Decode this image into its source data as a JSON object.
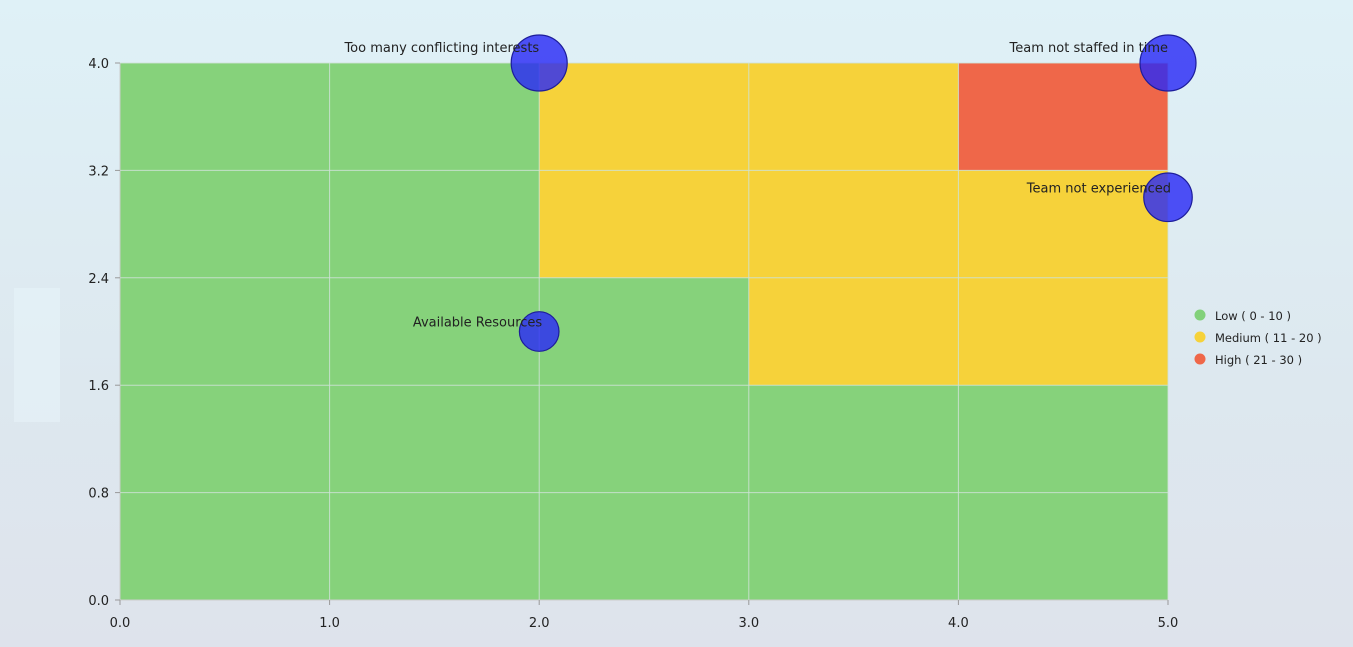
{
  "chart_data": {
    "type": "bubble-heatmap",
    "title": "",
    "xlabel": "",
    "ylabel": "",
    "xlim": [
      0,
      5
    ],
    "ylim": [
      0,
      4
    ],
    "x_ticks": [
      "0.0",
      "1.0",
      "2.0",
      "3.0",
      "4.0",
      "5.0"
    ],
    "y_ticks": [
      "0.0",
      "0.8",
      "1.6",
      "2.4",
      "3.2",
      "4.0"
    ],
    "grid": true,
    "zones": [
      {
        "category": "low",
        "x0": 0,
        "x1": 5,
        "y0": 0,
        "y1": 4
      },
      {
        "category": "medium",
        "x0": 2,
        "x1": 5,
        "y0": 2.4,
        "y1": 4
      },
      {
        "category": "medium",
        "x0": 3,
        "x1": 5,
        "y0": 1.6,
        "y1": 2.4
      },
      {
        "category": "high",
        "x0": 4,
        "x1": 5,
        "y0": 3.2,
        "y1": 4
      }
    ],
    "bubbles": [
      {
        "name": "Too many conflicting interests",
        "x": 2,
        "y": 4,
        "size": 8,
        "label_side": "top-left"
      },
      {
        "name": "Team not staffed in time",
        "x": 5,
        "y": 4,
        "size": 8,
        "label_side": "top-left"
      },
      {
        "name": "Team not experienced",
        "x": 5,
        "y": 3,
        "size": 6,
        "label_side": "left"
      },
      {
        "name": "Available Resources",
        "x": 2,
        "y": 2,
        "size": 4,
        "label_side": "left"
      }
    ],
    "legend": {
      "placement": "right",
      "items": [
        {
          "key": "low",
          "label": "Low ( 0 - 10 )",
          "color": "#82d17a"
        },
        {
          "key": "medium",
          "label": "Medium ( 11 - 20 )",
          "color": "#f6d23a"
        },
        {
          "key": "high",
          "label": "High ( 21 - 30 )",
          "color": "#ef6749"
        }
      ]
    },
    "colors": {
      "low": "#86d27b",
      "medium": "#f6d23a",
      "high": "#ef6749",
      "bubble_fill": "#2b2bf5",
      "bubble_stroke": "#1d1d9a",
      "grid": "#cfe3d8",
      "axis": "#cccccc"
    }
  }
}
